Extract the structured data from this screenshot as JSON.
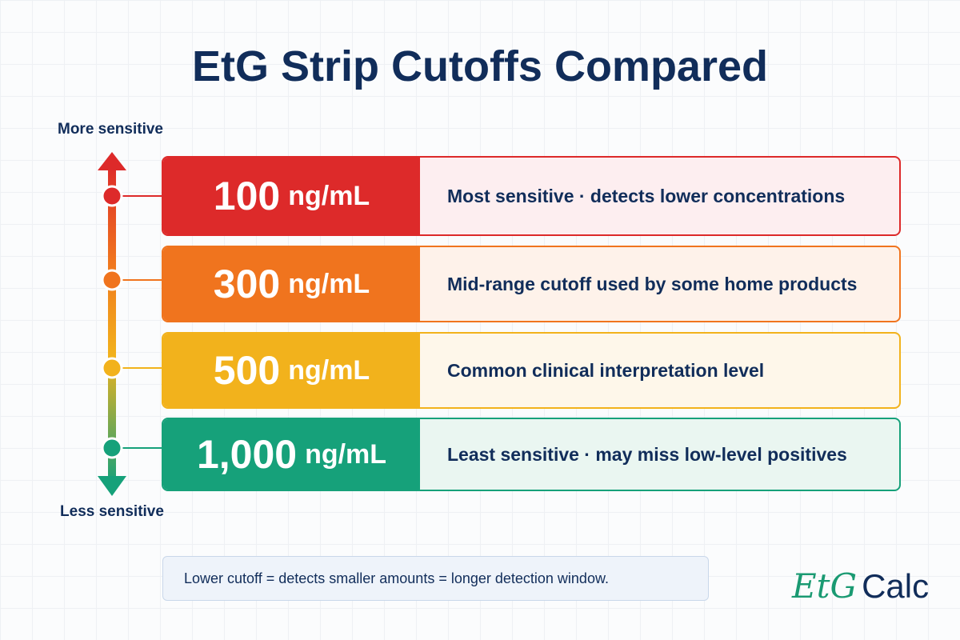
{
  "header": {
    "title": "EtG Strip Cutoffs Compared"
  },
  "scale": {
    "top_label": "More sensitive",
    "bottom_label": "Less sensitive"
  },
  "rows": [
    {
      "cutoff": "100",
      "unit": "ng/mL",
      "description": "Most sensitive  ·  detects lower concentrations"
    },
    {
      "cutoff": "300",
      "unit": "ng/mL",
      "description": "Mid-range cutoff used by some home products"
    },
    {
      "cutoff": "500",
      "unit": "ng/mL",
      "description": "Common clinical interpretation level"
    },
    {
      "cutoff": "1,000",
      "unit": "ng/mL",
      "description": "Least sensitive · may miss low-level positives"
    }
  ],
  "footer": {
    "note": "Lower cutoff = detects smaller amounts = longer detection window.",
    "logo_mark": "EtG",
    "logo_text": "Calc"
  }
}
